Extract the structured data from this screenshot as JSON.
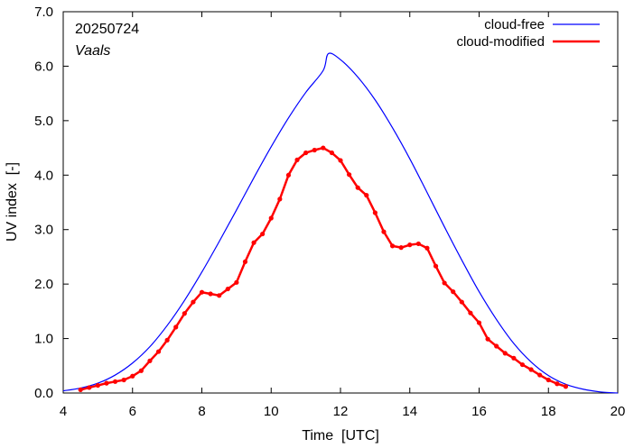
{
  "chart_data": {
    "type": "line",
    "date_label": "20250724",
    "location": "Vaals",
    "xlabel": "Time  [UTC]",
    "ylabel": "UV index  [-]",
    "xlim": [
      4,
      20
    ],
    "ylim": [
      0,
      7
    ],
    "xticks": [
      "4",
      "6",
      "8",
      "10",
      "12",
      "14",
      "16",
      "18",
      "20"
    ],
    "yticks": [
      "0.0",
      "1.0",
      "2.0",
      "3.0",
      "4.0",
      "5.0",
      "6.0",
      "7.0"
    ],
    "legend_position": "top-right",
    "grid": false,
    "series": [
      {
        "name": "cloud-free",
        "color": "#0000ff",
        "markers": false,
        "peak": {
          "x": 11.65,
          "y": 6.23
        },
        "x": [
          4.0,
          4.5,
          5.0,
          5.5,
          6.0,
          6.5,
          7.0,
          7.5,
          8.0,
          8.5,
          9.0,
          9.5,
          10.0,
          10.5,
          11.0,
          11.5,
          11.65,
          12.0,
          12.5,
          13.0,
          13.5,
          14.0,
          14.5,
          15.0,
          15.5,
          16.0,
          16.5,
          17.0,
          17.5,
          18.0,
          18.5,
          19.0,
          19.5,
          20.0
        ],
        "y": [
          0.04,
          0.09,
          0.18,
          0.33,
          0.55,
          0.85,
          1.24,
          1.7,
          2.22,
          2.78,
          3.36,
          3.95,
          4.52,
          5.05,
          5.52,
          5.92,
          6.23,
          6.12,
          5.8,
          5.38,
          4.87,
          4.3,
          3.68,
          3.05,
          2.44,
          1.86,
          1.35,
          0.91,
          0.57,
          0.32,
          0.16,
          0.07,
          0.02,
          0.0
        ]
      },
      {
        "name": "cloud-modified",
        "color": "#ff0000",
        "markers": true,
        "x": [
          4.5,
          4.75,
          5.0,
          5.25,
          5.5,
          5.75,
          6.0,
          6.25,
          6.5,
          6.75,
          7.0,
          7.25,
          7.5,
          7.75,
          8.0,
          8.25,
          8.5,
          8.75,
          9.0,
          9.25,
          9.5,
          9.75,
          10.0,
          10.25,
          10.5,
          10.75,
          11.0,
          11.25,
          11.5,
          11.75,
          12.0,
          12.25,
          12.5,
          12.75,
          13.0,
          13.25,
          13.5,
          13.75,
          14.0,
          14.25,
          14.5,
          14.75,
          15.0,
          15.25,
          15.5,
          15.75,
          16.0,
          16.25,
          16.5,
          16.75,
          17.0,
          17.25,
          17.5,
          17.75,
          18.0,
          18.25,
          18.5
        ],
        "y": [
          0.06,
          0.1,
          0.14,
          0.18,
          0.21,
          0.24,
          0.31,
          0.41,
          0.59,
          0.76,
          0.97,
          1.21,
          1.46,
          1.67,
          1.85,
          1.82,
          1.79,
          1.91,
          2.03,
          2.41,
          2.76,
          2.92,
          3.21,
          3.56,
          4.0,
          4.28,
          4.41,
          4.46,
          4.5,
          4.41,
          4.27,
          4.01,
          3.77,
          3.63,
          3.31,
          2.96,
          2.7,
          2.67,
          2.72,
          2.74,
          2.66,
          2.33,
          2.02,
          1.86,
          1.67,
          1.47,
          1.29,
          0.99,
          0.86,
          0.73,
          0.64,
          0.52,
          0.43,
          0.33,
          0.24,
          0.17,
          0.12
        ]
      }
    ]
  }
}
